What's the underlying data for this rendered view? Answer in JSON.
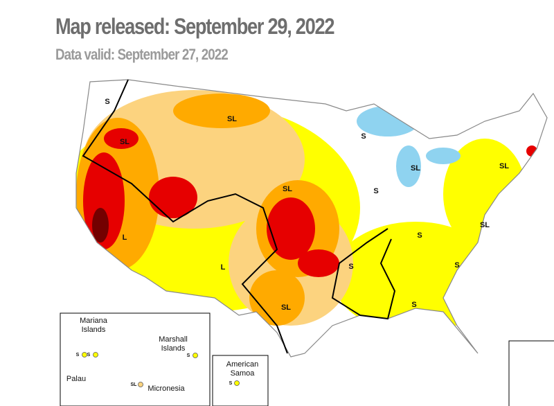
{
  "header": {
    "title": "Map released: September 29, 2022",
    "subtitle": "Data valid: September 27, 2022"
  },
  "map_labels": [
    "S",
    "SL",
    "SL",
    "S",
    "SL",
    "SL",
    "SL",
    "S",
    "L",
    "L",
    "S",
    "SL",
    "S",
    "S",
    "S",
    "SL"
  ],
  "insets": {
    "pacific": {
      "places": [
        "Mariana Islands",
        "Marshall Islands",
        "Palau",
        "Micronesia"
      ],
      "labels": [
        "S",
        "S",
        "S",
        "SL"
      ]
    },
    "samoa": {
      "place": "American Samoa",
      "label": "S"
    }
  }
}
